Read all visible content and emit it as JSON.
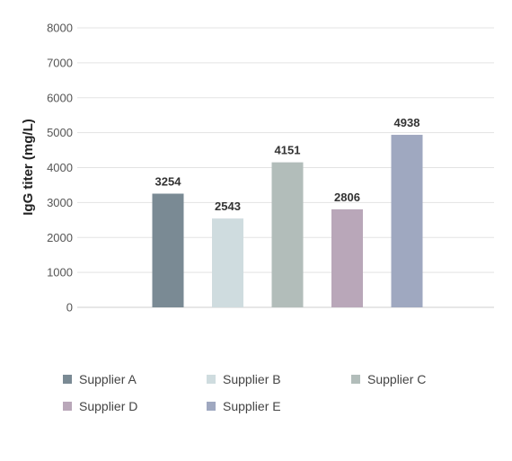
{
  "chart_data": {
    "type": "bar",
    "categories": [
      "Supplier A",
      "Supplier B",
      "Supplier C",
      "Supplier D",
      "Supplier E"
    ],
    "values": [
      3254,
      2543,
      4151,
      2806,
      4938
    ],
    "colors": [
      "#7a8a94",
      "#cfdcdf",
      "#b2bdba",
      "#b9a7b9",
      "#9fa8c0"
    ],
    "title": "",
    "xlabel": "",
    "ylabel": "IgG titer (mg/L)",
    "ylim": [
      0,
      8000
    ],
    "yticks": [
      0,
      1000,
      2000,
      3000,
      4000,
      5000,
      6000,
      7000,
      8000
    ],
    "grid": true,
    "legend_position": "bottom"
  }
}
